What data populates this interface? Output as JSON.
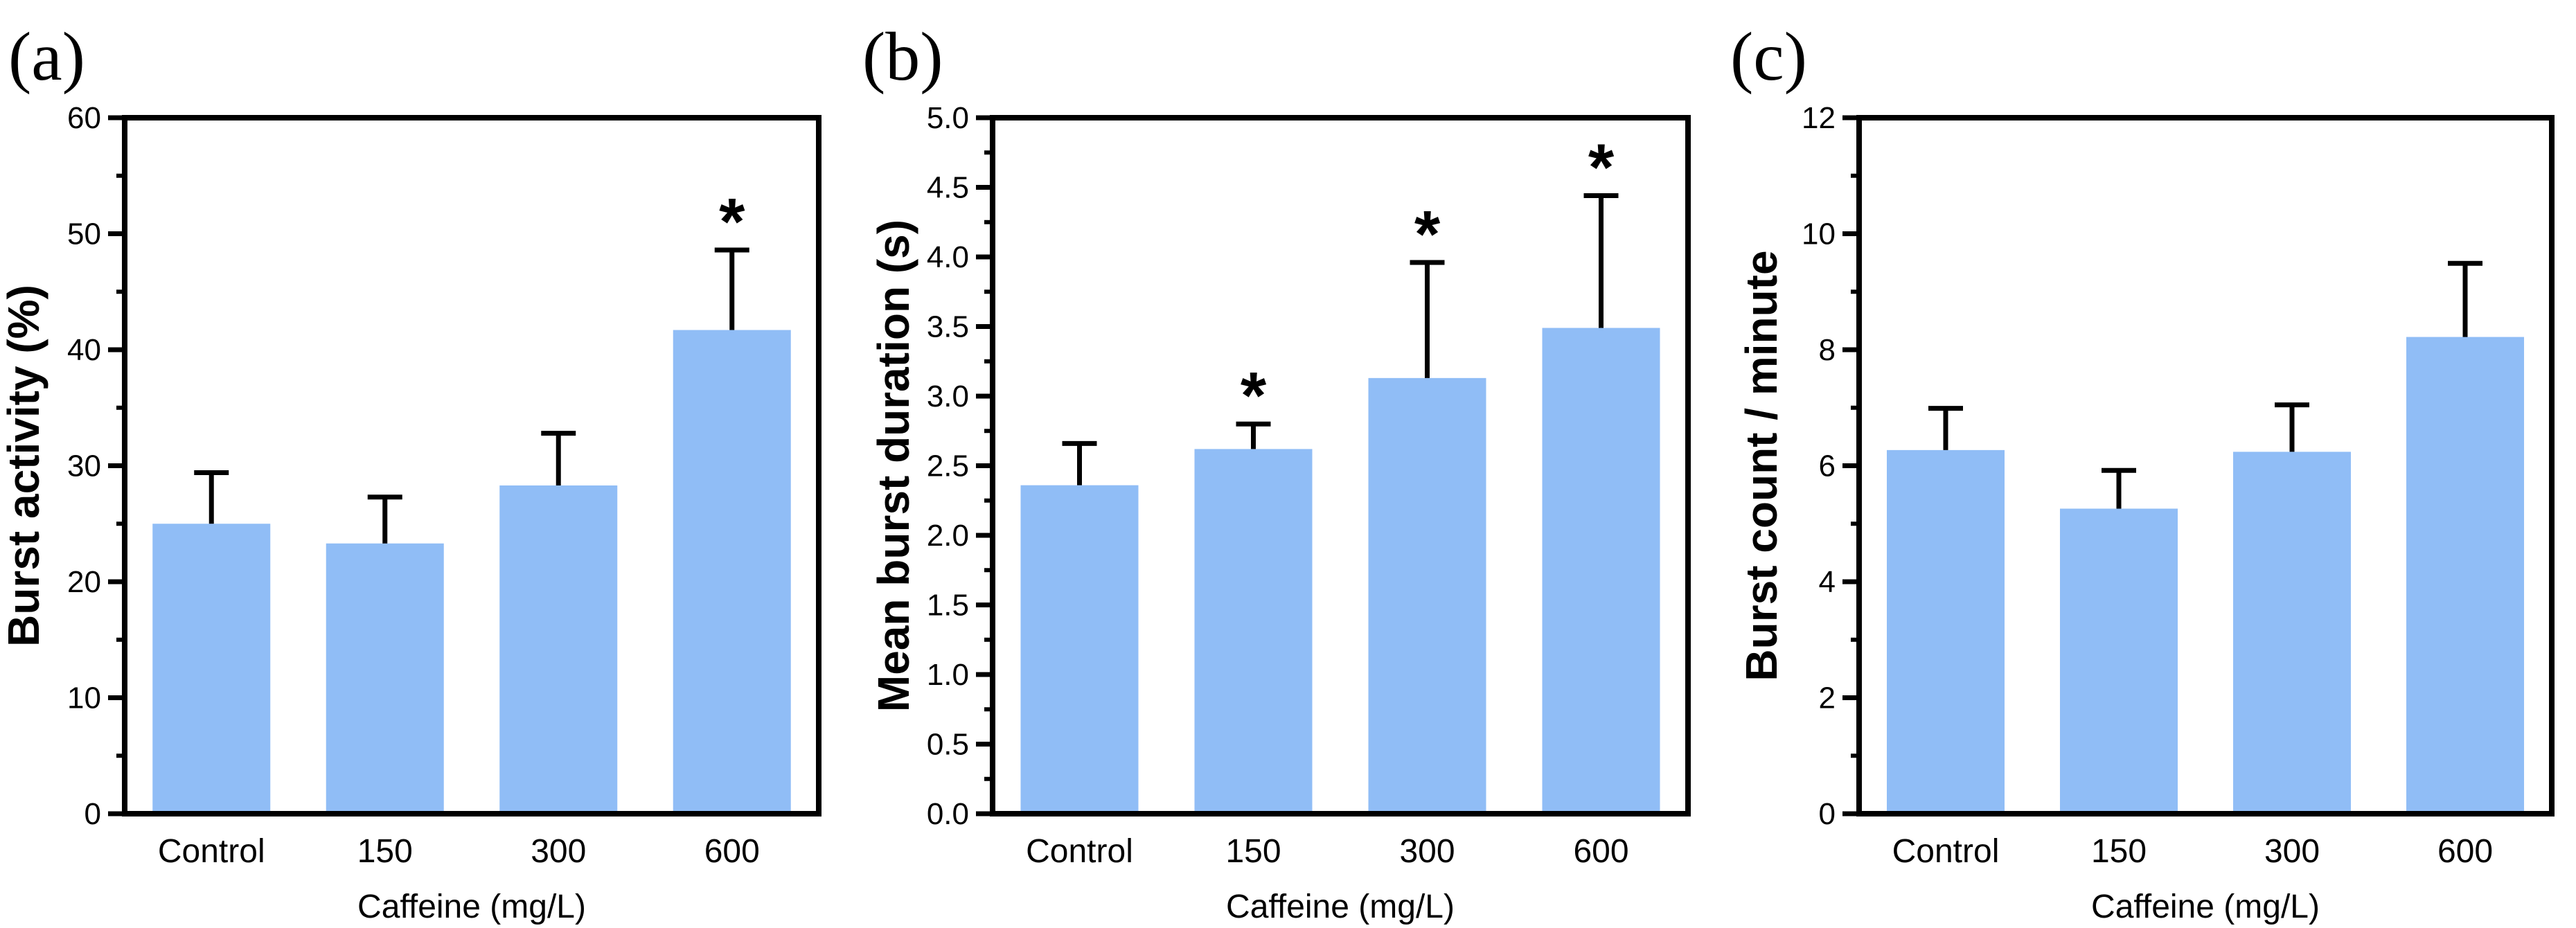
{
  "colors": {
    "bar": "#90BDF6",
    "axis": "#000000"
  },
  "chart_data": [
    {
      "panel_label": "(a)",
      "type": "bar",
      "categories": [
        "Control",
        "150",
        "300",
        "600"
      ],
      "values": [
        25.0,
        23.3,
        28.3,
        41.7
      ],
      "errors": [
        4.4,
        4.0,
        4.5,
        6.9
      ],
      "significance": [
        "",
        "",
        "",
        "*"
      ],
      "xlabel": "Caffeine (mg/L)",
      "ylabel": "Burst activity (%)",
      "ylim": [
        0,
        60
      ],
      "yticks": [
        0,
        10,
        20,
        30,
        40,
        50,
        60
      ],
      "ytick_labels": [
        "0",
        "10",
        "20",
        "30",
        "40",
        "50",
        "60"
      ],
      "minor_step": 5
    },
    {
      "panel_label": "(b)",
      "type": "bar",
      "categories": [
        "Control",
        "150",
        "300",
        "600"
      ],
      "values": [
        2.36,
        2.62,
        3.13,
        3.49
      ],
      "errors": [
        0.3,
        0.18,
        0.83,
        0.95
      ],
      "significance": [
        "",
        "*",
        "*",
        "*"
      ],
      "xlabel": "Caffeine (mg/L)",
      "ylabel": "Mean burst duration (s)",
      "ylim": [
        0,
        5
      ],
      "yticks": [
        0,
        0.5,
        1,
        1.5,
        2,
        2.5,
        3,
        3.5,
        4,
        4.5,
        5
      ],
      "ytick_labels": [
        "0.0",
        "0.5",
        "1.0",
        "1.5",
        "2.0",
        "2.5",
        "3.0",
        "3.5",
        "4.0",
        "4.5",
        "5.0"
      ],
      "minor_step": 0.25
    },
    {
      "panel_label": "(c)",
      "type": "bar",
      "categories": [
        "Control",
        "150",
        "300",
        "600"
      ],
      "values": [
        6.27,
        5.26,
        6.24,
        8.22
      ],
      "errors": [
        0.72,
        0.66,
        0.81,
        1.27
      ],
      "significance": [
        "",
        "",
        "",
        ""
      ],
      "xlabel": "Caffeine (mg/L)",
      "ylabel": "Burst count / minute",
      "ylim": [
        0,
        12
      ],
      "yticks": [
        0,
        2,
        4,
        6,
        8,
        10,
        12
      ],
      "ytick_labels": [
        "0",
        "2",
        "4",
        "6",
        "8",
        "10",
        "12"
      ],
      "minor_step": 1
    }
  ]
}
